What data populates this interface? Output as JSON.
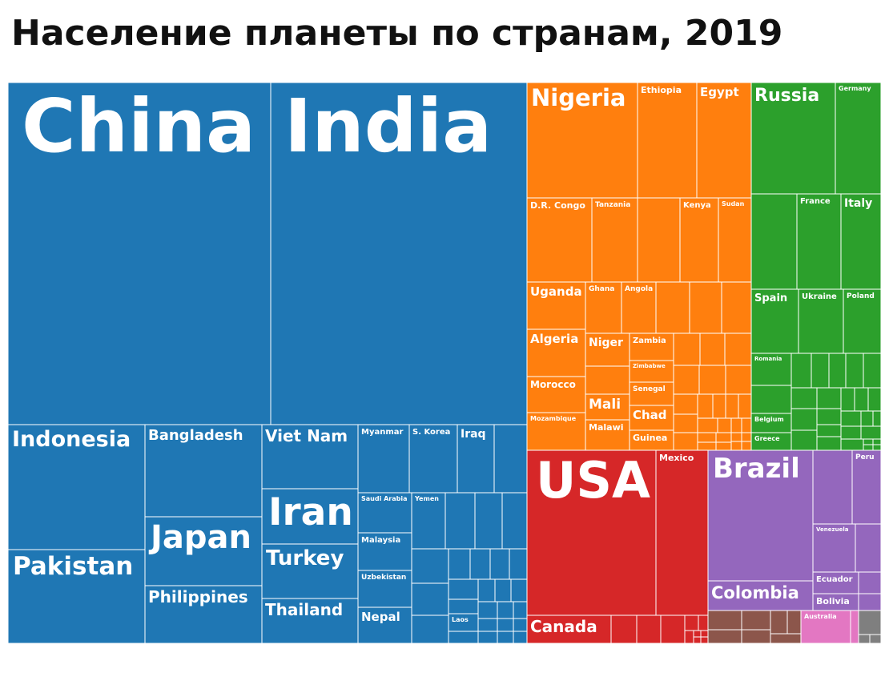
{
  "title": "Население планеты по странам, 2019",
  "chart_data": {
    "type": "treemap",
    "title": "Население планеты по странам, 2019",
    "colors": {
      "asia": "#1f77b4",
      "africa": "#ff7f0e",
      "europe": "#2ca02c",
      "north_america": "#d62728",
      "south_america": "#9467bd",
      "oceania": "#e377c2",
      "other_brown": "#8c564b",
      "other_gray": "#7f7f7f"
    },
    "labels": {
      "China": "China",
      "India": "India",
      "Indonesia": "Indonesia",
      "Pakistan": "Pakistan",
      "Bangladesh": "Bangladesh",
      "Japan": "Japan",
      "Philippines": "Philippines",
      "Viet Nam": "Viet Nam",
      "Iran": "Iran",
      "Turkey": "Turkey",
      "Thailand": "Thailand",
      "Myanmar": "Myanmar",
      "S. Korea": "S. Korea",
      "Iraq": "Iraq",
      "Saudi Arabia": "Saudi Arabia",
      "Yemen": "Yemen",
      "Malaysia": "Malaysia",
      "Uzbekistan": "Uzbekistan",
      "Nepal": "Nepal",
      "Laos": "Laos",
      "Nigeria": "Nigeria",
      "Ethiopia": "Ethiopia",
      "Egypt": "Egypt",
      "D.R. Congo": "D.R. Congo",
      "Tanzania": "Tanzania",
      "Kenya": "Kenya",
      "Sudan": "Sudan",
      "Uganda": "Uganda",
      "Ghana": "Ghana",
      "Angola": "Angola",
      "Algeria": "Algeria",
      "Niger": "Niger",
      "Zambia": "Zambia",
      "Zimbabwe": "Zimbabwe",
      "Morocco": "Morocco",
      "Senegal": "Senegal",
      "Mali": "Mali",
      "Chad": "Chad",
      "Mozambique": "Mozambique",
      "Malawi": "Malawi",
      "Guinea": "Guinea",
      "Russia": "Russia",
      "Germany": "Germany",
      "France": "France",
      "Italy": "Italy",
      "Spain": "Spain",
      "Ukraine": "Ukraine",
      "Poland": "Poland",
      "Romania": "Romania",
      "Belgium": "Belgium",
      "Greece": "Greece",
      "USA": "USA",
      "Mexico": "Mexico",
      "Canada": "Canada",
      "Brazil": "Brazil",
      "Peru": "Peru",
      "Venezuela": "Venezuela",
      "Colombia": "Colombia",
      "Ecuador": "Ecuador",
      "Bolivia": "Bolivia",
      "Australia": "Australia"
    }
  }
}
